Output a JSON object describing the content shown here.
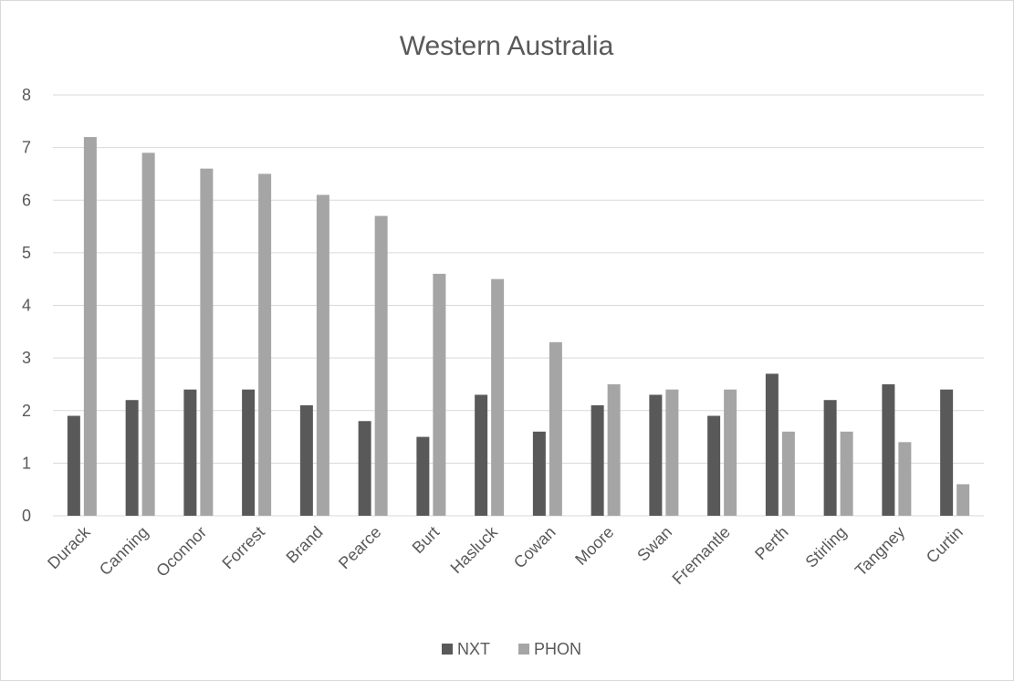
{
  "chart_data": {
    "type": "bar",
    "title": "Western Australia",
    "xlabel": "",
    "ylabel": "",
    "ylim": [
      0,
      8
    ],
    "yticks": [
      0,
      1,
      2,
      3,
      4,
      5,
      6,
      7,
      8
    ],
    "grid": true,
    "legend_position": "bottom",
    "categories": [
      "Durack",
      "Canning",
      "Oconnor",
      "Forrest",
      "Brand",
      "Pearce",
      "Burt",
      "Hasluck",
      "Cowan",
      "Moore",
      "Swan",
      "Fremantle",
      "Perth",
      "Stirling",
      "Tangney",
      "Curtin"
    ],
    "series": [
      {
        "name": "NXT",
        "color": "#595959",
        "values": [
          1.9,
          2.2,
          2.4,
          2.4,
          2.1,
          1.8,
          1.5,
          2.3,
          1.6,
          2.1,
          2.3,
          1.9,
          2.7,
          2.2,
          2.5,
          2.4
        ]
      },
      {
        "name": "PHON",
        "color": "#a5a5a5",
        "values": [
          7.2,
          6.9,
          6.6,
          6.5,
          6.1,
          5.7,
          4.6,
          4.5,
          3.3,
          2.5,
          2.4,
          2.4,
          1.6,
          1.6,
          1.4,
          0.6
        ]
      }
    ]
  },
  "colors": {
    "gridline": "#d9d9d9",
    "axis_line": "#d9d9d9",
    "text": "#595959"
  }
}
